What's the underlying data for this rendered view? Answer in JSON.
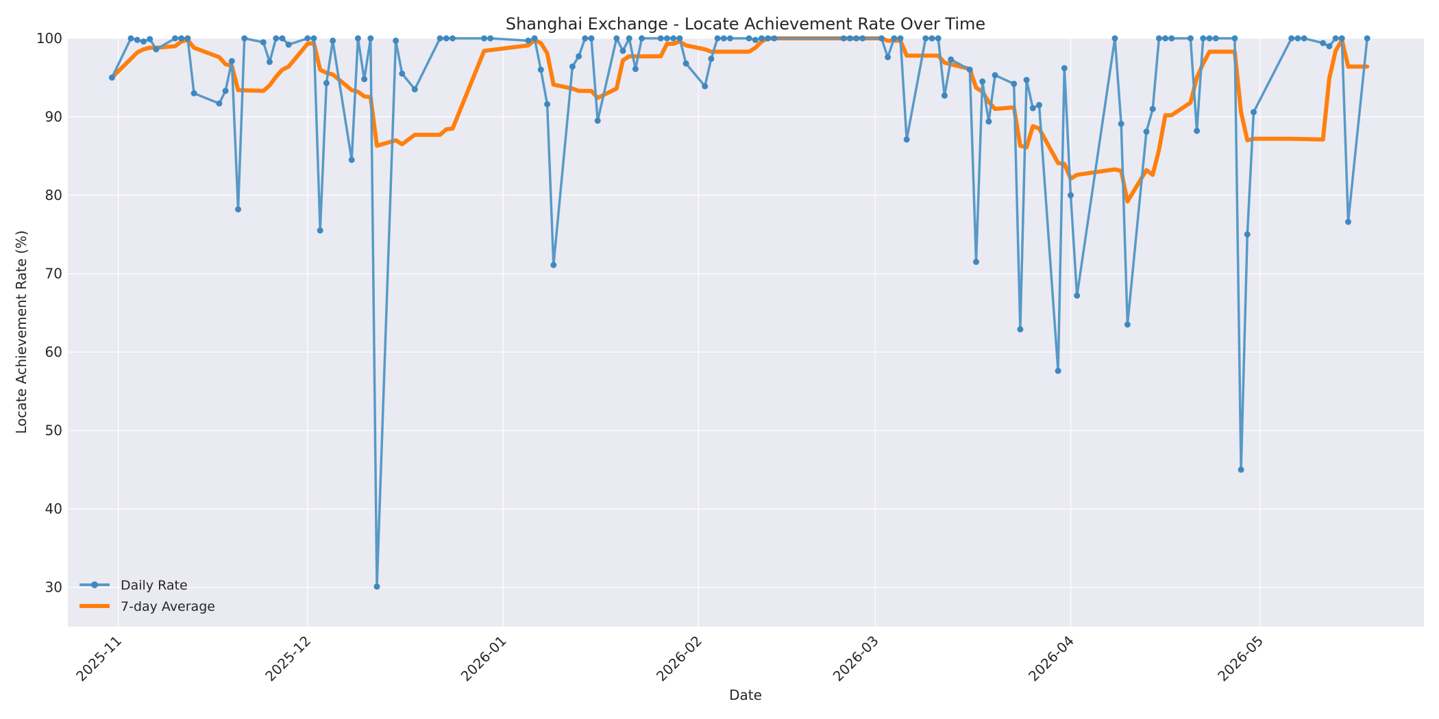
{
  "chart_data": {
    "type": "line",
    "title": "Shanghai Exchange - Locate Achievement Rate Over Time",
    "xlabel": "Date",
    "ylabel": "Locate Achievement Rate (%)",
    "xlim": [
      "2025-10-24",
      "2026-05-27"
    ],
    "ylim": [
      25,
      100
    ],
    "y_ticks": [
      30,
      40,
      50,
      60,
      70,
      80,
      90,
      100
    ],
    "x_ticks": [
      {
        "date": "2025-11-01",
        "label": "2025-11"
      },
      {
        "date": "2025-12-01",
        "label": "2025-12"
      },
      {
        "date": "2026-01-01",
        "label": "2026-01"
      },
      {
        "date": "2026-02-01",
        "label": "2026-02"
      },
      {
        "date": "2026-03-01",
        "label": "2026-03"
      },
      {
        "date": "2026-04-01",
        "label": "2026-04"
      },
      {
        "date": "2026-05-01",
        "label": "2026-05"
      }
    ],
    "grid": true,
    "legend_position": "bottom-left",
    "colors": {
      "daily": "#5799c7",
      "average": "#ff7f0e",
      "plot_bg": "#eaeaf2",
      "grid": "#ffffff"
    },
    "series": [
      {
        "name": "Daily Rate",
        "style": "line-marker",
        "points": [
          [
            "2025-10-31",
            95.0
          ],
          [
            "2025-11-03",
            100.0
          ],
          [
            "2025-11-04",
            99.8
          ],
          [
            "2025-11-05",
            99.6
          ],
          [
            "2025-11-06",
            99.9
          ],
          [
            "2025-11-07",
            98.6
          ],
          [
            "2025-11-10",
            100.0
          ],
          [
            "2025-11-11",
            100.0
          ],
          [
            "2025-11-12",
            100.0
          ],
          [
            "2025-11-13",
            93.0
          ],
          [
            "2025-11-17",
            91.7
          ],
          [
            "2025-11-18",
            93.3
          ],
          [
            "2025-11-19",
            97.1
          ],
          [
            "2025-11-20",
            78.2
          ],
          [
            "2025-11-21",
            100.0
          ],
          [
            "2025-11-24",
            99.5
          ],
          [
            "2025-11-25",
            97.0
          ],
          [
            "2025-11-26",
            100.0
          ],
          [
            "2025-11-27",
            100.0
          ],
          [
            "2025-11-28",
            99.2
          ],
          [
            "2025-12-01",
            100.0
          ],
          [
            "2025-12-02",
            100.0
          ],
          [
            "2025-12-03",
            75.5
          ],
          [
            "2025-12-04",
            94.3
          ],
          [
            "2025-12-05",
            99.7
          ],
          [
            "2025-12-08",
            84.5
          ],
          [
            "2025-12-09",
            100.0
          ],
          [
            "2025-12-10",
            94.8
          ],
          [
            "2025-12-11",
            100.0
          ],
          [
            "2025-12-12",
            30.1
          ],
          [
            "2025-12-15",
            99.7
          ],
          [
            "2025-12-16",
            95.5
          ],
          [
            "2025-12-18",
            93.5
          ],
          [
            "2025-12-22",
            100.0
          ],
          [
            "2025-12-23",
            100.0
          ],
          [
            "2025-12-24",
            100.0
          ],
          [
            "2025-12-29",
            100.0
          ],
          [
            "2025-12-30",
            100.0
          ],
          [
            "2026-01-05",
            99.7
          ],
          [
            "2026-01-06",
            100.0
          ],
          [
            "2026-01-07",
            96.0
          ],
          [
            "2026-01-08",
            91.6
          ],
          [
            "2026-01-09",
            71.1
          ],
          [
            "2026-01-12",
            96.4
          ],
          [
            "2026-01-13",
            97.7
          ],
          [
            "2026-01-14",
            100.0
          ],
          [
            "2026-01-15",
            100.0
          ],
          [
            "2026-01-16",
            89.5
          ],
          [
            "2026-01-19",
            100.0
          ],
          [
            "2026-01-20",
            98.4
          ],
          [
            "2026-01-21",
            100.0
          ],
          [
            "2026-01-22",
            96.1
          ],
          [
            "2026-01-23",
            100.0
          ],
          [
            "2026-01-26",
            100.0
          ],
          [
            "2026-01-27",
            100.0
          ],
          [
            "2026-01-28",
            100.0
          ],
          [
            "2026-01-29",
            100.0
          ],
          [
            "2026-01-30",
            96.8
          ],
          [
            "2026-02-02",
            93.9
          ],
          [
            "2026-02-03",
            97.4
          ],
          [
            "2026-02-04",
            100.0
          ],
          [
            "2026-02-05",
            100.0
          ],
          [
            "2026-02-06",
            100.0
          ],
          [
            "2026-02-09",
            100.0
          ],
          [
            "2026-02-10",
            99.8
          ],
          [
            "2026-02-11",
            100.0
          ],
          [
            "2026-02-12",
            100.0
          ],
          [
            "2026-02-13",
            100.0
          ],
          [
            "2026-02-24",
            100.0
          ],
          [
            "2026-02-25",
            100.0
          ],
          [
            "2026-02-26",
            100.0
          ],
          [
            "2026-02-27",
            100.0
          ],
          [
            "2026-03-02",
            100.0
          ],
          [
            "2026-03-03",
            97.6
          ],
          [
            "2026-03-04",
            100.0
          ],
          [
            "2026-03-05",
            100.0
          ],
          [
            "2026-03-06",
            87.1
          ],
          [
            "2026-03-09",
            100.0
          ],
          [
            "2026-03-10",
            100.0
          ],
          [
            "2026-03-11",
            100.0
          ],
          [
            "2026-03-12",
            92.7
          ],
          [
            "2026-03-13",
            97.3
          ],
          [
            "2026-03-16",
            96.0
          ],
          [
            "2026-03-17",
            71.5
          ],
          [
            "2026-03-18",
            94.5
          ],
          [
            "2026-03-19",
            89.4
          ],
          [
            "2026-03-20",
            95.3
          ],
          [
            "2026-03-23",
            94.2
          ],
          [
            "2026-03-24",
            62.9
          ],
          [
            "2026-03-25",
            94.7
          ],
          [
            "2026-03-26",
            91.1
          ],
          [
            "2026-03-27",
            91.5
          ],
          [
            "2026-03-30",
            57.6
          ],
          [
            "2026-03-31",
            96.2
          ],
          [
            "2026-04-01",
            80.0
          ],
          [
            "2026-04-02",
            67.2
          ],
          [
            "2026-04-08",
            100.0
          ],
          [
            "2026-04-09",
            89.1
          ],
          [
            "2026-04-10",
            63.5
          ],
          [
            "2026-04-13",
            88.1
          ],
          [
            "2026-04-14",
            91.0
          ],
          [
            "2026-04-15",
            100.0
          ],
          [
            "2026-04-16",
            100.0
          ],
          [
            "2026-04-17",
            100.0
          ],
          [
            "2026-04-20",
            100.0
          ],
          [
            "2026-04-21",
            88.2
          ],
          [
            "2026-04-22",
            100.0
          ],
          [
            "2026-04-23",
            100.0
          ],
          [
            "2026-04-24",
            100.0
          ],
          [
            "2026-04-27",
            100.0
          ],
          [
            "2026-04-28",
            45.0
          ],
          [
            "2026-04-29",
            75.0
          ],
          [
            "2026-04-30",
            90.6
          ],
          [
            "2026-05-06",
            100.0
          ],
          [
            "2026-05-07",
            100.0
          ],
          [
            "2026-05-08",
            100.0
          ],
          [
            "2026-05-11",
            99.4
          ],
          [
            "2026-05-12",
            99.0
          ],
          [
            "2026-05-13",
            100.0
          ],
          [
            "2026-05-14",
            100.0
          ],
          [
            "2026-05-15",
            76.6
          ],
          [
            "2026-05-18",
            100.0
          ]
        ]
      },
      {
        "name": "7-day Average",
        "style": "line",
        "points": [
          [
            "2025-10-31",
            95.0
          ],
          [
            "2025-11-04",
            98.2
          ],
          [
            "2025-11-05",
            98.6
          ],
          [
            "2025-11-06",
            98.8
          ],
          [
            "2025-11-07",
            98.8
          ],
          [
            "2025-11-10",
            99.0
          ],
          [
            "2025-11-11",
            99.6
          ],
          [
            "2025-11-12",
            99.8
          ],
          [
            "2025-11-13",
            98.8
          ],
          [
            "2025-11-17",
            97.6
          ],
          [
            "2025-11-18",
            96.7
          ],
          [
            "2025-11-19",
            96.5
          ],
          [
            "2025-11-20",
            93.4
          ],
          [
            "2025-11-24",
            93.3
          ],
          [
            "2025-11-25",
            94.0
          ],
          [
            "2025-11-26",
            95.1
          ],
          [
            "2025-11-27",
            96.0
          ],
          [
            "2025-11-28",
            96.4
          ],
          [
            "2025-12-01",
            99.3
          ],
          [
            "2025-12-02",
            99.4
          ],
          [
            "2025-12-03",
            96.0
          ],
          [
            "2025-12-04",
            95.6
          ],
          [
            "2025-12-05",
            95.4
          ],
          [
            "2025-12-08",
            93.4
          ],
          [
            "2025-12-09",
            93.2
          ],
          [
            "2025-12-10",
            92.6
          ],
          [
            "2025-12-11",
            92.5
          ],
          [
            "2025-12-12",
            86.3
          ],
          [
            "2025-12-15",
            87.0
          ],
          [
            "2025-12-16",
            86.5
          ],
          [
            "2025-12-18",
            87.7
          ],
          [
            "2025-12-22",
            87.7
          ],
          [
            "2025-12-23",
            88.4
          ],
          [
            "2025-12-24",
            88.5
          ],
          [
            "2025-12-29",
            98.4
          ],
          [
            "2026-01-05",
            99.1
          ],
          [
            "2026-01-06",
            99.8
          ],
          [
            "2026-01-07",
            99.4
          ],
          [
            "2026-01-08",
            98.1
          ],
          [
            "2026-01-09",
            94.1
          ],
          [
            "2026-01-12",
            93.6
          ],
          [
            "2026-01-13",
            93.3
          ],
          [
            "2026-01-15",
            93.3
          ],
          [
            "2026-01-16",
            92.4
          ],
          [
            "2026-01-19",
            93.6
          ],
          [
            "2026-01-20",
            97.2
          ],
          [
            "2026-01-21",
            97.7
          ],
          [
            "2026-01-26",
            97.7
          ],
          [
            "2026-01-27",
            99.3
          ],
          [
            "2026-01-28",
            99.3
          ],
          [
            "2026-01-29",
            99.6
          ],
          [
            "2026-01-30",
            99.1
          ],
          [
            "2026-02-02",
            98.6
          ],
          [
            "2026-02-03",
            98.3
          ],
          [
            "2026-02-09",
            98.3
          ],
          [
            "2026-02-10",
            98.8
          ],
          [
            "2026-02-11",
            99.6
          ],
          [
            "2026-02-12",
            100.0
          ],
          [
            "2026-03-02",
            100.0
          ],
          [
            "2026-03-03",
            99.7
          ],
          [
            "2026-03-05",
            99.7
          ],
          [
            "2026-03-06",
            97.8
          ],
          [
            "2026-03-11",
            97.8
          ],
          [
            "2026-03-12",
            96.9
          ],
          [
            "2026-03-13",
            96.7
          ],
          [
            "2026-03-16",
            96.1
          ],
          [
            "2026-03-17",
            93.7
          ],
          [
            "2026-03-18",
            93.2
          ],
          [
            "2026-03-19",
            91.9
          ],
          [
            "2026-03-20",
            91.0
          ],
          [
            "2026-03-23",
            91.2
          ],
          [
            "2026-03-24",
            86.3
          ],
          [
            "2026-03-25",
            86.1
          ],
          [
            "2026-03-26",
            88.8
          ],
          [
            "2026-03-27",
            88.5
          ],
          [
            "2026-03-30",
            84.1
          ],
          [
            "2026-03-31",
            84.0
          ],
          [
            "2026-04-01",
            82.1
          ],
          [
            "2026-04-02",
            82.6
          ],
          [
            "2026-04-08",
            83.3
          ],
          [
            "2026-04-09",
            83.1
          ],
          [
            "2026-04-10",
            79.2
          ],
          [
            "2026-04-13",
            83.2
          ],
          [
            "2026-04-14",
            82.6
          ],
          [
            "2026-04-15",
            85.8
          ],
          [
            "2026-04-16",
            90.2
          ],
          [
            "2026-04-17",
            90.2
          ],
          [
            "2026-04-20",
            91.8
          ],
          [
            "2026-04-21",
            95.0
          ],
          [
            "2026-04-22",
            96.8
          ],
          [
            "2026-04-23",
            98.3
          ],
          [
            "2026-04-27",
            98.3
          ],
          [
            "2026-04-28",
            90.6
          ],
          [
            "2026-04-29",
            87.0
          ],
          [
            "2026-04-30",
            87.2
          ],
          [
            "2026-05-06",
            87.2
          ],
          [
            "2026-05-11",
            87.1
          ],
          [
            "2026-05-12",
            94.9
          ],
          [
            "2026-05-13",
            98.4
          ],
          [
            "2026-05-14",
            99.8
          ],
          [
            "2026-05-15",
            96.4
          ],
          [
            "2026-05-18",
            96.4
          ]
        ]
      }
    ]
  }
}
